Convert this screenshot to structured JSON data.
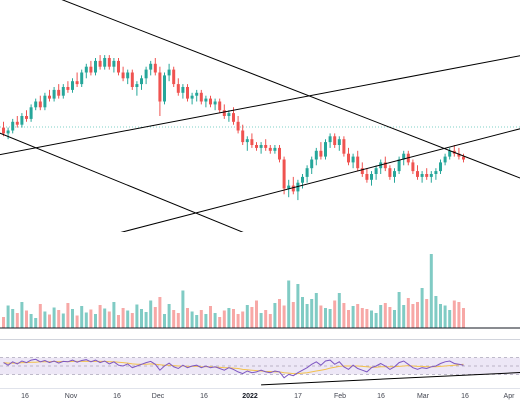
{
  "chart_data": {
    "type": "candlestick",
    "x_axis": {
      "tick_labels": [
        "16",
        "Nov",
        "16",
        "Dec",
        "16",
        "2022",
        "17",
        "Feb",
        "16",
        "Mar",
        "16",
        "Apr"
      ],
      "bold_labels": [
        "2022"
      ]
    },
    "colors": {
      "up": "#26a69a",
      "down": "#ef5350",
      "volume_up": "#80cbc4",
      "volume_down": "#f7a8a6",
      "trendline": "#000000",
      "rsi_line": "#7e57c2",
      "rsi_ma": "#f2c14e",
      "rsi_band": "#ede7f6"
    },
    "price": {
      "candles": [
        {
          "o": 86,
          "h": 88,
          "l": 83,
          "c": 84
        },
        {
          "o": 84,
          "h": 86,
          "l": 82,
          "c": 85
        },
        {
          "o": 85,
          "h": 89,
          "l": 84,
          "c": 88
        },
        {
          "o": 88,
          "h": 90,
          "l": 86,
          "c": 87
        },
        {
          "o": 87,
          "h": 91,
          "l": 86,
          "c": 90
        },
        {
          "o": 90,
          "h": 92,
          "l": 88,
          "c": 89
        },
        {
          "o": 89,
          "h": 94,
          "l": 88,
          "c": 93
        },
        {
          "o": 93,
          "h": 96,
          "l": 92,
          "c": 95
        },
        {
          "o": 95,
          "h": 97,
          "l": 92,
          "c": 93
        },
        {
          "o": 93,
          "h": 98,
          "l": 92,
          "c": 97
        },
        {
          "o": 97,
          "h": 99,
          "l": 95,
          "c": 96
        },
        {
          "o": 96,
          "h": 100,
          "l": 95,
          "c": 99
        },
        {
          "o": 99,
          "h": 101,
          "l": 96,
          "c": 97
        },
        {
          "o": 97,
          "h": 101,
          "l": 96,
          "c": 100
        },
        {
          "o": 100,
          "h": 102,
          "l": 98,
          "c": 99
        },
        {
          "o": 99,
          "h": 103,
          "l": 98,
          "c": 102
        },
        {
          "o": 102,
          "h": 105,
          "l": 100,
          "c": 101
        },
        {
          "o": 101,
          "h": 106,
          "l": 100,
          "c": 105
        },
        {
          "o": 105,
          "h": 108,
          "l": 103,
          "c": 107
        },
        {
          "o": 107,
          "h": 109,
          "l": 104,
          "c": 105
        },
        {
          "o": 105,
          "h": 110,
          "l": 104,
          "c": 109
        },
        {
          "o": 109,
          "h": 111,
          "l": 106,
          "c": 107
        },
        {
          "o": 107,
          "h": 111,
          "l": 106,
          "c": 110
        },
        {
          "o": 110,
          "h": 111,
          "l": 106,
          "c": 107
        },
        {
          "o": 107,
          "h": 110,
          "l": 105,
          "c": 109
        },
        {
          "o": 109,
          "h": 110,
          "l": 104,
          "c": 105
        },
        {
          "o": 105,
          "h": 107,
          "l": 102,
          "c": 103
        },
        {
          "o": 103,
          "h": 106,
          "l": 101,
          "c": 105
        },
        {
          "o": 105,
          "h": 106,
          "l": 99,
          "c": 100
        },
        {
          "o": 100,
          "h": 102,
          "l": 97,
          "c": 101
        },
        {
          "o": 101,
          "h": 104,
          "l": 99,
          "c": 103
        },
        {
          "o": 103,
          "h": 107,
          "l": 101,
          "c": 106
        },
        {
          "o": 106,
          "h": 109,
          "l": 104,
          "c": 108
        },
        {
          "o": 108,
          "h": 110,
          "l": 104,
          "c": 105
        },
        {
          "o": 105,
          "h": 107,
          "l": 90,
          "c": 95
        },
        {
          "o": 95,
          "h": 105,
          "l": 94,
          "c": 104
        },
        {
          "o": 104,
          "h": 108,
          "l": 102,
          "c": 106
        },
        {
          "o": 106,
          "h": 107,
          "l": 100,
          "c": 101
        },
        {
          "o": 101,
          "h": 103,
          "l": 97,
          "c": 98
        },
        {
          "o": 98,
          "h": 101,
          "l": 96,
          "c": 100
        },
        {
          "o": 100,
          "h": 101,
          "l": 95,
          "c": 96
        },
        {
          "o": 96,
          "h": 98,
          "l": 94,
          "c": 97
        },
        {
          "o": 97,
          "h": 99,
          "l": 95,
          "c": 98
        },
        {
          "o": 98,
          "h": 99,
          "l": 94,
          "c": 95
        },
        {
          "o": 95,
          "h": 97,
          "l": 93,
          "c": 96
        },
        {
          "o": 96,
          "h": 97,
          "l": 93,
          "c": 94
        },
        {
          "o": 94,
          "h": 96,
          "l": 92,
          "c": 95
        },
        {
          "o": 95,
          "h": 96,
          "l": 91,
          "c": 92
        },
        {
          "o": 92,
          "h": 94,
          "l": 89,
          "c": 90
        },
        {
          "o": 90,
          "h": 92,
          "l": 88,
          "c": 91
        },
        {
          "o": 91,
          "h": 93,
          "l": 87,
          "c": 88
        },
        {
          "o": 88,
          "h": 90,
          "l": 84,
          "c": 85
        },
        {
          "o": 85,
          "h": 87,
          "l": 80,
          "c": 81
        },
        {
          "o": 81,
          "h": 83,
          "l": 78,
          "c": 82
        },
        {
          "o": 82,
          "h": 84,
          "l": 79,
          "c": 80
        },
        {
          "o": 80,
          "h": 81,
          "l": 78,
          "c": 79
        },
        {
          "o": 79,
          "h": 81,
          "l": 77,
          "c": 80
        },
        {
          "o": 80,
          "h": 82,
          "l": 78,
          "c": 79
        },
        {
          "o": 79,
          "h": 80,
          "l": 77,
          "c": 78
        },
        {
          "o": 78,
          "h": 80,
          "l": 77,
          "c": 79
        },
        {
          "o": 79,
          "h": 80,
          "l": 74,
          "c": 75
        },
        {
          "o": 75,
          "h": 76,
          "l": 63,
          "c": 65
        },
        {
          "o": 65,
          "h": 68,
          "l": 62,
          "c": 66
        },
        {
          "o": 66,
          "h": 69,
          "l": 63,
          "c": 64
        },
        {
          "o": 64,
          "h": 68,
          "l": 61,
          "c": 67
        },
        {
          "o": 67,
          "h": 70,
          "l": 65,
          "c": 69
        },
        {
          "o": 69,
          "h": 73,
          "l": 67,
          "c": 72
        },
        {
          "o": 72,
          "h": 76,
          "l": 70,
          "c": 75
        },
        {
          "o": 75,
          "h": 79,
          "l": 73,
          "c": 78
        },
        {
          "o": 78,
          "h": 81,
          "l": 75,
          "c": 76
        },
        {
          "o": 76,
          "h": 82,
          "l": 75,
          "c": 81
        },
        {
          "o": 81,
          "h": 84,
          "l": 79,
          "c": 83
        },
        {
          "o": 83,
          "h": 84,
          "l": 79,
          "c": 80
        },
        {
          "o": 80,
          "h": 83,
          "l": 78,
          "c": 82
        },
        {
          "o": 82,
          "h": 83,
          "l": 76,
          "c": 77
        },
        {
          "o": 77,
          "h": 79,
          "l": 73,
          "c": 74
        },
        {
          "o": 74,
          "h": 77,
          "l": 72,
          "c": 76
        },
        {
          "o": 76,
          "h": 78,
          "l": 71,
          "c": 72
        },
        {
          "o": 72,
          "h": 74,
          "l": 69,
          "c": 70
        },
        {
          "o": 70,
          "h": 72,
          "l": 67,
          "c": 68
        },
        {
          "o": 68,
          "h": 71,
          "l": 66,
          "c": 70
        },
        {
          "o": 70,
          "h": 73,
          "l": 68,
          "c": 72
        },
        {
          "o": 72,
          "h": 75,
          "l": 70,
          "c": 74
        },
        {
          "o": 74,
          "h": 76,
          "l": 71,
          "c": 72
        },
        {
          "o": 72,
          "h": 73,
          "l": 68,
          "c": 69
        },
        {
          "o": 69,
          "h": 72,
          "l": 67,
          "c": 71
        },
        {
          "o": 71,
          "h": 76,
          "l": 70,
          "c": 75
        },
        {
          "o": 75,
          "h": 78,
          "l": 73,
          "c": 77
        },
        {
          "o": 77,
          "h": 78,
          "l": 73,
          "c": 74
        },
        {
          "o": 74,
          "h": 75,
          "l": 70,
          "c": 71
        },
        {
          "o": 71,
          "h": 73,
          "l": 68,
          "c": 69
        },
        {
          "o": 69,
          "h": 71,
          "l": 67,
          "c": 70
        },
        {
          "o": 70,
          "h": 72,
          "l": 68,
          "c": 69
        },
        {
          "o": 69,
          "h": 71,
          "l": 67,
          "c": 70
        },
        {
          "o": 70,
          "h": 72,
          "l": 68,
          "c": 71
        },
        {
          "o": 71,
          "h": 75,
          "l": 70,
          "c": 74
        },
        {
          "o": 74,
          "h": 77,
          "l": 73,
          "c": 76
        },
        {
          "o": 76,
          "h": 79,
          "l": 75,
          "c": 78
        },
        {
          "o": 78,
          "h": 80,
          "l": 76,
          "c": 77
        },
        {
          "o": 77,
          "h": 79,
          "l": 75,
          "c": 76
        },
        {
          "o": 76,
          "h": 77,
          "l": 74,
          "c": 75
        }
      ],
      "ylim": [
        50,
        130
      ]
    },
    "trendlines": [
      {
        "p1": [
          -13,
          146
        ],
        "p2": [
          123,
          62
        ]
      },
      {
        "p1": [
          -13,
          92
        ],
        "p2": [
          123,
          4
        ]
      },
      {
        "p1": [
          -13,
          73
        ],
        "p2": [
          123,
          114
        ]
      },
      {
        "p1": [
          -13,
          34
        ],
        "p2": [
          123,
          90
        ]
      }
    ],
    "volume": {
      "values": [
        22,
        45,
        38,
        30,
        52,
        35,
        28,
        20,
        48,
        33,
        27,
        41,
        36,
        29,
        50,
        38,
        25,
        44,
        31,
        37,
        28,
        46,
        39,
        33,
        52,
        26,
        40,
        35,
        30,
        47,
        38,
        32,
        55,
        42,
        62,
        28,
        48,
        36,
        30,
        75,
        40,
        33,
        26,
        36,
        28,
        44,
        30,
        22,
        35,
        40,
        38,
        28,
        33,
        46,
        42,
        55,
        30,
        36,
        28,
        50,
        58,
        45,
        95,
        52,
        88,
        62,
        48,
        58,
        70,
        45,
        40,
        38,
        55,
        70,
        50,
        36,
        44,
        48,
        40,
        38,
        35,
        30,
        46,
        50,
        42,
        36,
        72,
        46,
        60,
        48,
        52,
        80,
        58,
        148,
        64,
        48,
        45,
        36,
        55,
        52,
        40
      ],
      "ylim": [
        0,
        160
      ]
    },
    "rsi": {
      "values": [
        58,
        52,
        60,
        55,
        62,
        58,
        64,
        66,
        60,
        63,
        58,
        62,
        57,
        61,
        60,
        64,
        59,
        63,
        65,
        60,
        64,
        58,
        62,
        55,
        60,
        52,
        50,
        55,
        46,
        50,
        54,
        58,
        61,
        54,
        40,
        50,
        57,
        48,
        44,
        52,
        46,
        50,
        52,
        46,
        50,
        46,
        48,
        44,
        40,
        46,
        42,
        36,
        32,
        38,
        34,
        36,
        40,
        36,
        34,
        38,
        36,
        22,
        30,
        27,
        34,
        40,
        46,
        54,
        60,
        52,
        62,
        64,
        54,
        60,
        48,
        42,
        52,
        44,
        40,
        36,
        46,
        50,
        56,
        50,
        42,
        48,
        58,
        62,
        54,
        46,
        42,
        46,
        44,
        48,
        50,
        56,
        60,
        62,
        56,
        54,
        52
      ],
      "ma": [
        58,
        57,
        57,
        57,
        58,
        58,
        59,
        59,
        60,
        60,
        60,
        61,
        60,
        61,
        60,
        61,
        61,
        61,
        61,
        61,
        61,
        61,
        61,
        60,
        60,
        59,
        58,
        57,
        55,
        54,
        54,
        54,
        55,
        54,
        53,
        52,
        52,
        51,
        50,
        50,
        49,
        49,
        49,
        48,
        48,
        48,
        47,
        47,
        46,
        46,
        45,
        44,
        42,
        41,
        40,
        39,
        38,
        37,
        37,
        36,
        36,
        34,
        33,
        32,
        32,
        33,
        34,
        36,
        38,
        40,
        42,
        45,
        47,
        49,
        50,
        50,
        50,
        50,
        49,
        48,
        47,
        47,
        48,
        48,
        48,
        48,
        49,
        50,
        51,
        50,
        49,
        49,
        48,
        48,
        48,
        49,
        50,
        51,
        52,
        53,
        54
      ],
      "ylim": [
        0,
        100
      ],
      "bands": [
        30,
        50,
        70
      ],
      "trendline": {
        "p1": [
          56,
          5
        ],
        "p2": [
          123,
          40
        ]
      }
    }
  }
}
